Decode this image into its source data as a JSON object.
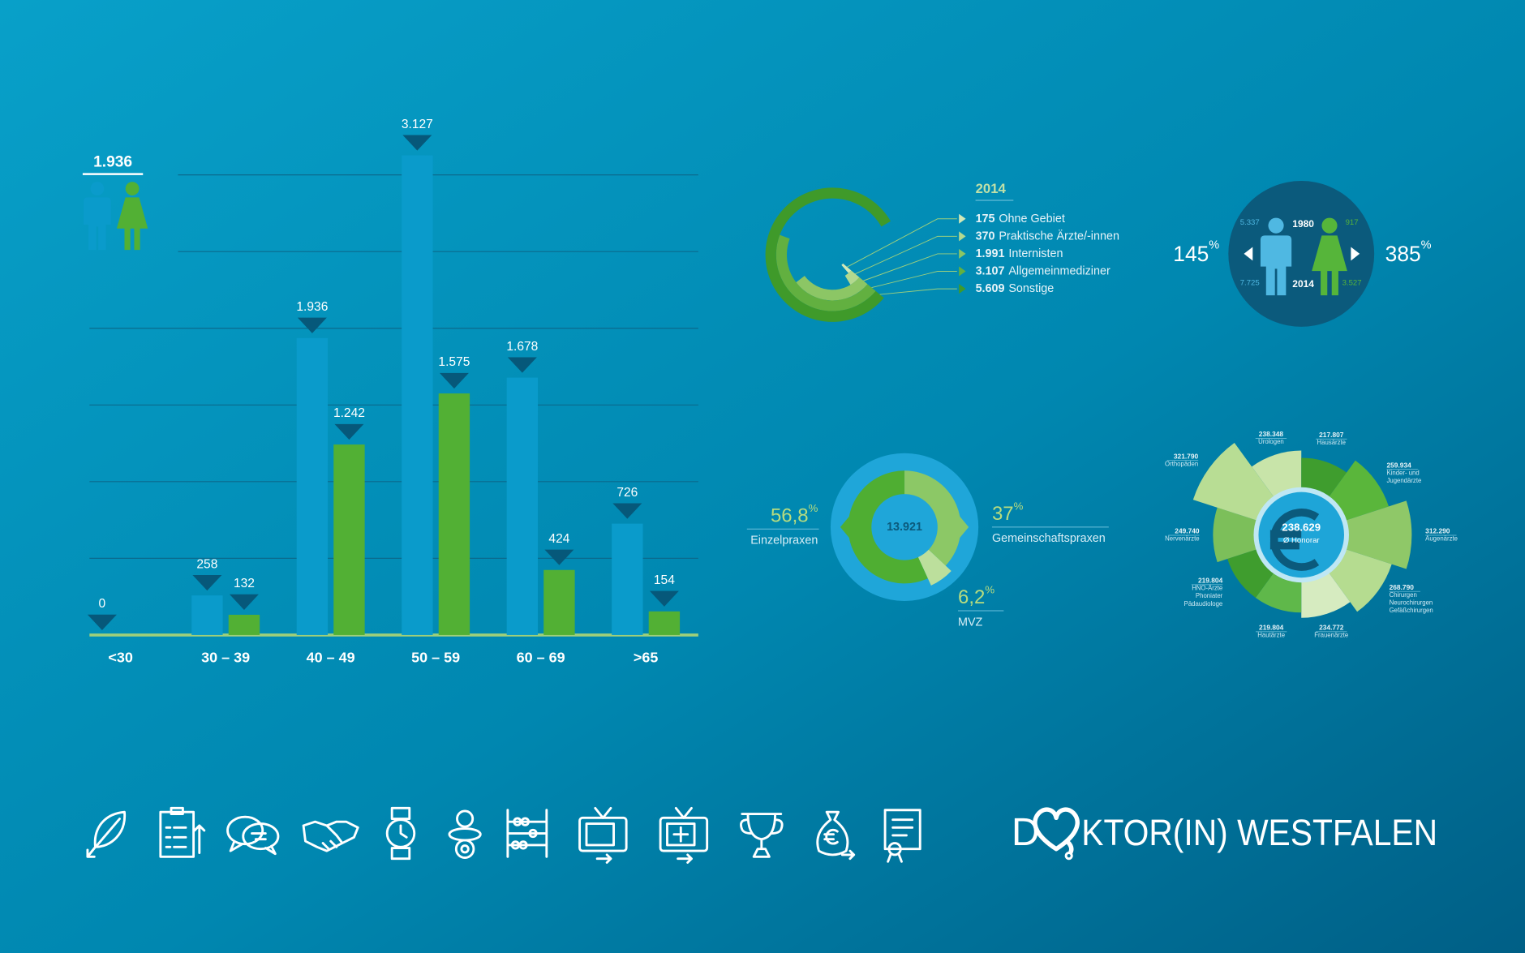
{
  "chart_data": [
    {
      "type": "bar",
      "categories": [
        "<30",
        "30 – 39",
        "40 – 49",
        "50 – 59",
        "60 – 69",
        ">65"
      ],
      "series": [
        {
          "color": "#0a9bcb",
          "values": [
            0,
            258,
            1936,
            3127,
            1678,
            726
          ],
          "value_labels": [
            "0",
            "258",
            "1.936",
            "3.127",
            "1.678",
            "726"
          ]
        },
        {
          "color": "#52b034",
          "values": [
            null,
            132,
            1242,
            1575,
            424,
            154
          ],
          "value_labels": [
            null,
            "132",
            "1.242",
            "1.575",
            "424",
            "154"
          ]
        }
      ],
      "annotation": "1.936",
      "ylim": [
        0,
        3500
      ],
      "yticks": [
        500,
        1000,
        1500,
        2000,
        2500,
        3000
      ],
      "grid": true
    },
    {
      "type": "radial-bar",
      "title": "2014",
      "categories": [
        "Ohne Gebiet",
        "Praktische Ärzte/-innen",
        "Internisten",
        "Allgemeinmediziner",
        "Sonstige"
      ],
      "values": [
        175,
        370,
        1991,
        3107,
        5609
      ],
      "value_labels": [
        "175",
        "370",
        "1.991",
        "3.107",
        "5.609"
      ],
      "colors": [
        "#d2e9b8",
        "#b3d98f",
        "#8cc665",
        "#62b040",
        "#3f9a2a"
      ]
    },
    {
      "type": "comparison",
      "categories": [
        "1980",
        "2014"
      ],
      "unit": "%",
      "series": [
        {
          "color": "#4fb8e2",
          "values": [
            5337,
            7725
          ],
          "value_labels": [
            "5.337",
            "7.725"
          ],
          "change": 145
        },
        {
          "color": "#56b53a",
          "values": [
            917,
            3527
          ],
          "value_labels": [
            "917",
            "3.527"
          ],
          "change": 385
        }
      ]
    },
    {
      "type": "donut",
      "categories": [
        "Einzelpraxen",
        "Gemeinschaftspraxen",
        "MVZ"
      ],
      "values": [
        56.8,
        37,
        6.2
      ],
      "value_labels": [
        "56,8",
        "37",
        "6,2"
      ],
      "unit": "%",
      "colors": [
        "#4fae32",
        "#8cc866",
        "#bcdf9c"
      ],
      "center_value": 13921,
      "center_label": "13.921"
    },
    {
      "type": "rose",
      "center_value": 238629,
      "center_label": "238.629",
      "center_title": "Ø Honorar",
      "categories": [
        [
          "Urologen"
        ],
        [
          "Hausärzte"
        ],
        [
          "Kinder- und",
          "Jugendärzte"
        ],
        [
          "Augenärzte"
        ],
        [
          "Chirurgen",
          "Neurochirurgen",
          "Gefäßchirurgen"
        ],
        [
          "Frauenärzte"
        ],
        [
          "Hautärzte"
        ],
        [
          "HNO-Ärzte",
          "Phoniater",
          "Pädaudiologe"
        ],
        [
          "Nervenärzte"
        ],
        [
          "Orthopäden"
        ]
      ],
      "values": [
        238348,
        217807,
        259934,
        312290,
        268790,
        234772,
        219804,
        219804,
        249740,
        321790
      ],
      "value_labels": [
        "238.348",
        "217.807",
        "259.934",
        "312.290",
        "268.790",
        "234.772",
        "219.804",
        "219.804",
        "249.740",
        "321.790"
      ],
      "colors": [
        "#c8e4a9",
        "#3f9d2e",
        "#5ab63b",
        "#8fc868",
        "#b5dc90",
        "#d6ebc0",
        "#5fb84a",
        "#3f9d2e",
        "#7cbf5a",
        "#b8dd94"
      ]
    }
  ],
  "logo": {
    "start": "D",
    "end": "KTOR(IN) WESTFALEN"
  }
}
